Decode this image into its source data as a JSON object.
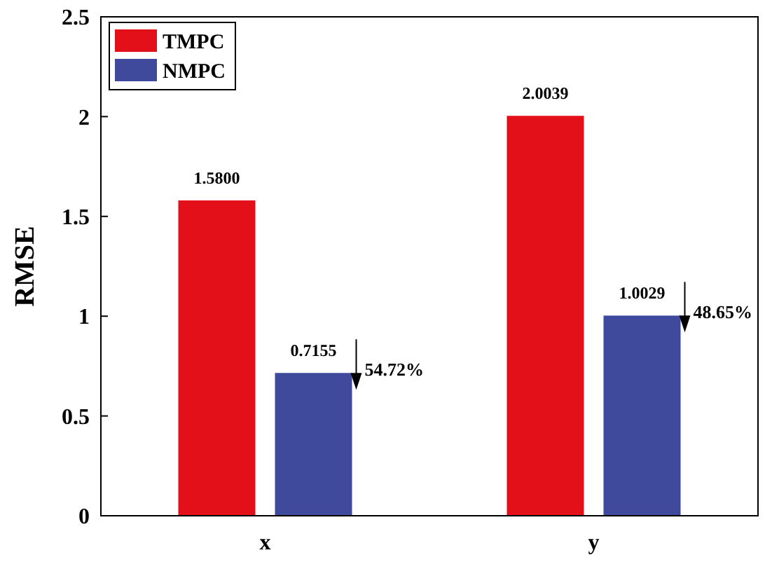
{
  "chart_data": {
    "type": "bar",
    "ylabel": "RMSE",
    "categories": [
      "x",
      "y"
    ],
    "series": [
      {
        "name": "TMPC",
        "color": "#e3101a",
        "values": [
          1.58,
          2.0039
        ],
        "value_labels": [
          "1.5800",
          "2.0039"
        ]
      },
      {
        "name": "NMPC",
        "color": "#3f4a9c",
        "values": [
          0.7155,
          1.0029
        ],
        "value_labels": [
          "0.7155",
          "1.0029"
        ]
      }
    ],
    "ylim": [
      0,
      2.5
    ],
    "yticks": [
      0,
      0.5,
      1,
      1.5,
      2,
      2.5
    ],
    "grid": false,
    "legend": "top left",
    "annotations": [
      "54.72%",
      "48.65%"
    ]
  }
}
